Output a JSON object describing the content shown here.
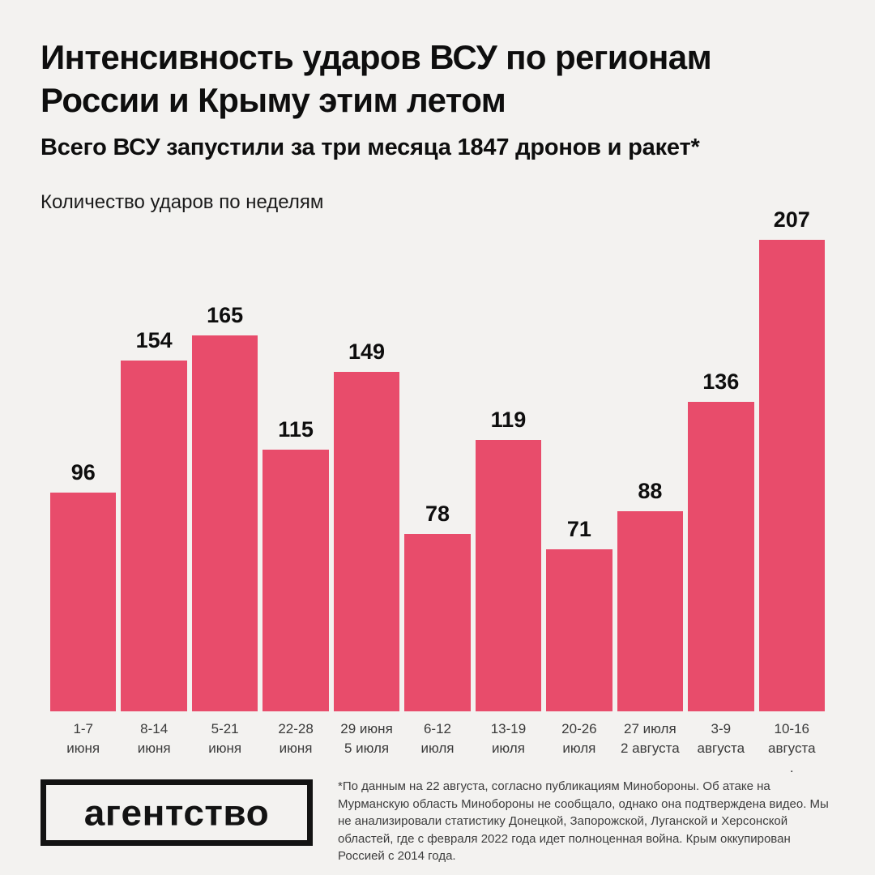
{
  "header": {
    "title_lines": [
      "Интенсивность ударов ВСУ по регионам",
      "России и Крыму этим летом"
    ],
    "subtitle": "Всего ВСУ запустили за три месяца 1847 дронов и ракет*"
  },
  "chart_data": {
    "type": "bar",
    "title": "Количество ударов по неделям",
    "categories": [
      [
        "1-7",
        "июня"
      ],
      [
        "8-14",
        "июня"
      ],
      [
        "5-21",
        "июня"
      ],
      [
        "22-28",
        "июня"
      ],
      [
        "29 июня",
        "5 июля"
      ],
      [
        "6-12",
        "июля"
      ],
      [
        "13-19",
        "июля"
      ],
      [
        "20-26",
        "июля"
      ],
      [
        "27 июля",
        "2 августа"
      ],
      [
        "3-9",
        "августа"
      ],
      [
        "10-16",
        "августа",
        "."
      ]
    ],
    "values": [
      96,
      154,
      165,
      115,
      149,
      78,
      119,
      71,
      88,
      136,
      207
    ],
    "ylim": [
      0,
      207
    ],
    "grid": false,
    "legend": false,
    "value_labels": true,
    "bar_color": "#E84C6B"
  },
  "footer": {
    "logo_text": "агентство",
    "footnote": "*По данным на 22 августа, согласно публикациям Минобороны. Об атаке на Мурманскую область Минобороны не сообщало, однако она подтверждена видео. Мы не анализировали статистику Донецкой, Запорожской, Луганской и Херсонской областей, где с февраля 2022 года идет полноценная война. Крым оккупирован Россией с 2014 года."
  }
}
